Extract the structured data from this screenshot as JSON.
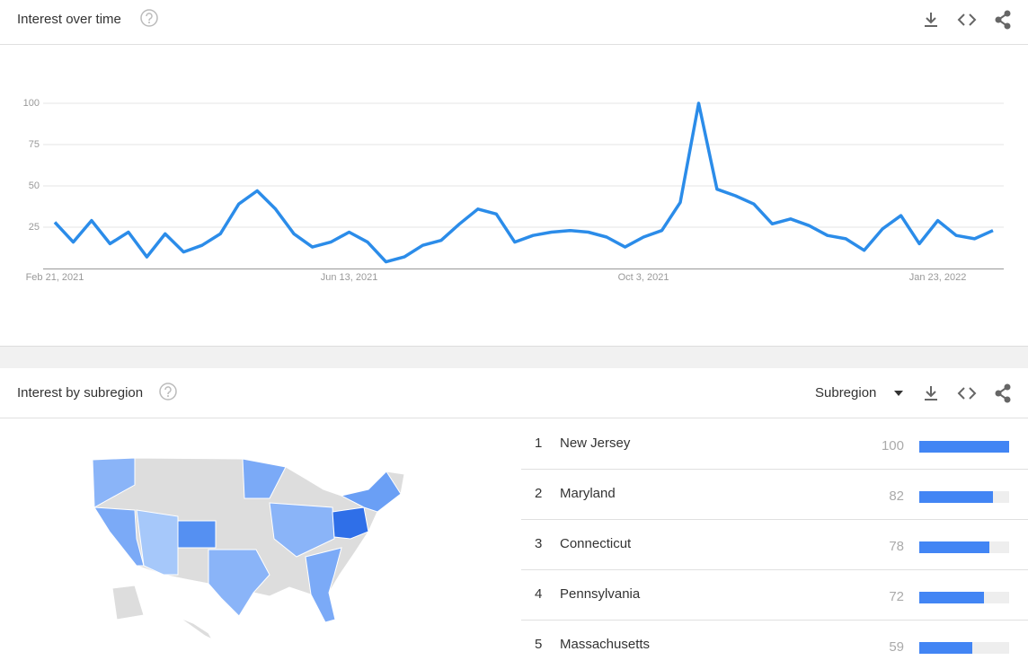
{
  "interest_over_time": {
    "title": "Interest over time"
  },
  "chart_data": {
    "type": "line",
    "categories": [
      "Feb 21, 2021",
      null,
      null,
      null,
      null,
      null,
      null,
      null,
      null,
      null,
      null,
      null,
      null,
      null,
      null,
      null,
      "Jun 13, 2021",
      null,
      null,
      null,
      null,
      null,
      null,
      null,
      null,
      null,
      null,
      null,
      null,
      null,
      null,
      null,
      "Oct 3, 2021",
      null,
      null,
      null,
      null,
      null,
      null,
      null,
      null,
      null,
      null,
      null,
      null,
      null,
      null,
      null,
      "Jan 23, 2022",
      null,
      null,
      null
    ],
    "values": [
      28,
      16,
      29,
      15,
      22,
      7,
      21,
      10,
      14,
      21,
      39,
      47,
      36,
      21,
      13,
      16,
      22,
      16,
      4,
      7,
      14,
      17,
      27,
      36,
      33,
      16,
      20,
      22,
      23,
      22,
      19,
      13,
      19,
      23,
      40,
      100,
      48,
      44,
      39,
      27,
      30,
      26,
      20,
      18,
      11,
      24,
      32,
      15,
      29,
      20,
      18,
      23
    ],
    "color": "#2b8ce9",
    "ylim": [
      0,
      100
    ],
    "yticks": [
      25,
      50,
      75,
      100
    ],
    "grid": true
  },
  "interest_by_subregion": {
    "title": "Interest by subregion",
    "dropdown": "Subregion",
    "bar_color": "#4285f4",
    "rows": [
      {
        "rank": 1,
        "name": "New Jersey",
        "value": 100
      },
      {
        "rank": 2,
        "name": "Maryland",
        "value": 82
      },
      {
        "rank": 3,
        "name": "Connecticut",
        "value": 78
      },
      {
        "rank": 4,
        "name": "Pennsylvania",
        "value": 72
      },
      {
        "rank": 5,
        "name": "Massachusetts",
        "value": 59
      }
    ]
  }
}
